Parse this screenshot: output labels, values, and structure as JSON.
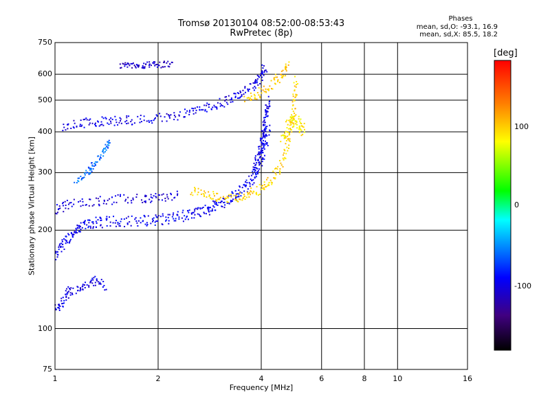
{
  "header": {
    "title": "Tromsø 20130104 08:52:00-08:53:43",
    "subtitle": "RwPretec (8p)"
  },
  "phase_legend": {
    "heading": "Phases",
    "line_o": "mean, sd,O:  -93.1, 16.9",
    "line_x": "mean, sd,X:   85.5, 18.2"
  },
  "colorbar": {
    "unit": "[deg]",
    "ticks": [
      "100",
      "0",
      "-100"
    ],
    "range": [
      -180,
      180
    ],
    "colors": [
      "#000000",
      "#400080",
      "#0000ff",
      "#00ffff",
      "#00ff00",
      "#ffff00",
      "#ff8000",
      "#ff0000"
    ]
  },
  "chart_data": {
    "type": "scatter",
    "title": "Tromsø 20130104 08:52:00-08:53:43",
    "subtitle": "RwPretec (8p)",
    "xlabel": "Frequency [MHz]",
    "ylabel": "Stationary phase Virtual Height [km]",
    "x_scale": "log",
    "y_scale": "log",
    "xlim": [
      1,
      16
    ],
    "ylim": [
      75,
      750
    ],
    "x_ticks": [
      "1",
      "2",
      "4",
      "6",
      "8",
      "10",
      "16"
    ],
    "x_tick_values": [
      1,
      2,
      4,
      6,
      8,
      10,
      16
    ],
    "y_ticks": [
      "750",
      "600",
      "500",
      "400",
      "300",
      "200",
      "100",
      "75"
    ],
    "y_tick_values": [
      750,
      600,
      500,
      400,
      300,
      200,
      100,
      75
    ],
    "grid": true,
    "series": [
      {
        "traces": [
          {
            "phase": -95,
            "jitter": 0.035,
            "points": [
              [
                1.0,
                165
              ],
              [
                1.05,
                180
              ],
              [
                1.1,
                190
              ],
              [
                1.15,
                200
              ],
              [
                1.2,
                205
              ],
              [
                1.3,
                210
              ],
              [
                1.4,
                212
              ],
              [
                1.6,
                213
              ],
              [
                1.8,
                214
              ],
              [
                2.0,
                215
              ],
              [
                2.2,
                218
              ],
              [
                2.4,
                222
              ],
              [
                2.6,
                226
              ],
              [
                2.8,
                232
              ],
              [
                3.0,
                240
              ],
              [
                3.2,
                248
              ],
              [
                3.4,
                258
              ],
              [
                3.6,
                270
              ],
              [
                3.8,
                290
              ],
              [
                4.0,
                320
              ],
              [
                4.1,
                360
              ],
              [
                4.2,
                420
              ]
            ]
          },
          {
            "phase": -105,
            "jitter": 0.03,
            "points": [
              [
                1.0,
                230
              ],
              [
                1.1,
                240
              ],
              [
                1.3,
                245
              ],
              [
                1.5,
                248
              ],
              [
                1.8,
                250
              ],
              [
                2.0,
                252
              ],
              [
                2.3,
                255
              ]
            ]
          },
          {
            "phase": -100,
            "jitter": 0.03,
            "points": [
              [
                1.05,
                410
              ],
              [
                1.2,
                425
              ],
              [
                1.35,
                430
              ],
              [
                1.5,
                432
              ],
              [
                1.7,
                435
              ],
              [
                2.0,
                440
              ],
              [
                2.3,
                450
              ],
              [
                2.6,
                465
              ],
              [
                2.9,
                480
              ],
              [
                3.2,
                500
              ],
              [
                3.5,
                525
              ],
              [
                3.8,
                555
              ],
              [
                4.0,
                590
              ],
              [
                4.1,
                630
              ]
            ]
          },
          {
            "phase": -110,
            "jitter": 0.02,
            "points": [
              [
                1.55,
                635
              ],
              [
                1.7,
                638
              ],
              [
                1.85,
                640
              ],
              [
                2.0,
                642
              ],
              [
                2.2,
                645
              ]
            ]
          },
          {
            "phase": -100,
            "jitter": 0.03,
            "points": [
              [
                1.0,
                115
              ],
              [
                1.05,
                120
              ],
              [
                1.1,
                130
              ],
              [
                1.2,
                132
              ],
              [
                1.3,
                140
              ],
              [
                1.4,
                135
              ]
            ]
          },
          {
            "phase": -98,
            "jitter": 0.03,
            "points": [
              [
                3.8,
                300
              ],
              [
                3.9,
                330
              ],
              [
                4.0,
                360
              ],
              [
                4.05,
                390
              ],
              [
                4.1,
                420
              ],
              [
                4.15,
                460
              ],
              [
                4.2,
                500
              ]
            ]
          },
          {
            "phase": -60,
            "jitter": 0.02,
            "points": [
              [
                1.15,
                280
              ],
              [
                1.25,
                300
              ],
              [
                1.3,
                320
              ],
              [
                1.4,
                350
              ],
              [
                1.45,
                380
              ]
            ]
          }
        ],
        "name": "O"
      },
      {
        "traces": [
          {
            "phase": 95,
            "jitter": 0.03,
            "points": [
              [
                2.5,
                265
              ],
              [
                2.8,
                255
              ],
              [
                3.1,
                250
              ],
              [
                3.4,
                252
              ],
              [
                3.7,
                258
              ],
              [
                4.0,
                268
              ],
              [
                4.3,
                285
              ],
              [
                4.6,
                320
              ],
              [
                4.8,
                370
              ],
              [
                4.9,
                430
              ],
              [
                5.0,
                500
              ],
              [
                5.05,
                580
              ]
            ]
          },
          {
            "phase": 100,
            "jitter": 0.03,
            "points": [
              [
                3.6,
                500
              ],
              [
                3.9,
                520
              ],
              [
                4.3,
                560
              ],
              [
                4.6,
                600
              ],
              [
                4.8,
                640
              ]
            ]
          },
          {
            "phase": 85,
            "jitter": 0.04,
            "points": [
              [
                4.6,
                380
              ],
              [
                4.8,
                420
              ],
              [
                5.0,
                450
              ],
              [
                5.2,
                420
              ],
              [
                5.3,
                390
              ]
            ]
          }
        ],
        "name": "X"
      }
    ]
  }
}
